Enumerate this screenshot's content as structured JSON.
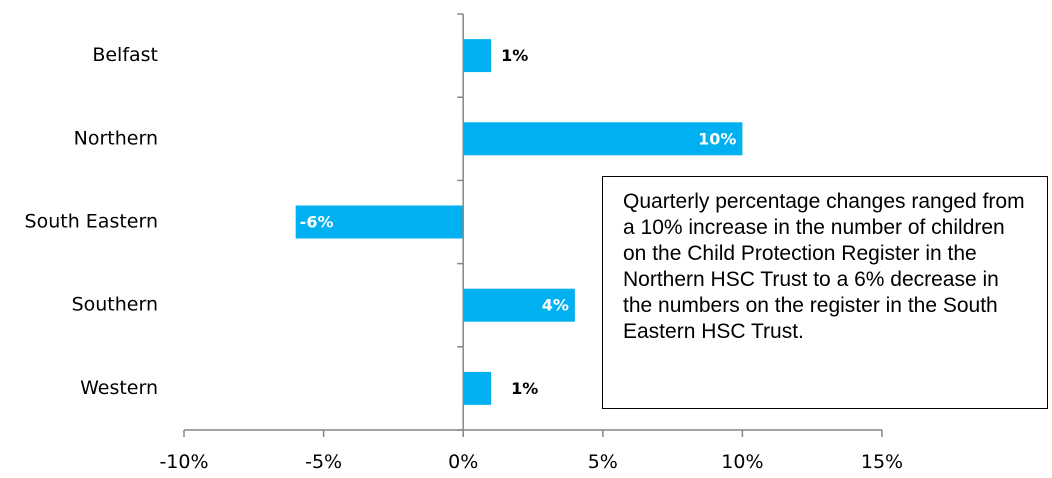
{
  "chart_data": {
    "type": "bar",
    "orientation": "horizontal",
    "categories": [
      "Belfast",
      "Northern",
      "South Eastern",
      "Southern",
      "Western"
    ],
    "values": [
      1,
      10,
      -6,
      4,
      1
    ],
    "data_labels": [
      "1%",
      "10%",
      "-6%",
      "4%",
      "1%"
    ],
    "xlim": [
      -10,
      15
    ],
    "xticks": [
      -10,
      -5,
      0,
      5,
      10,
      15
    ],
    "xtick_labels": [
      "-10%",
      "-5%",
      "0%",
      "5%",
      "10%",
      "15%"
    ],
    "bar_color": "#00B0F0",
    "grid": false,
    "title": "",
    "xlabel": "",
    "ylabel": ""
  },
  "annotation": {
    "text": "Quarterly percentage changes ranged from a 10% increase in the number of children on the Child Protection Register in the Northern HSC Trust to a 6% decrease in the numbers on the register in the South Eastern HSC Trust."
  }
}
